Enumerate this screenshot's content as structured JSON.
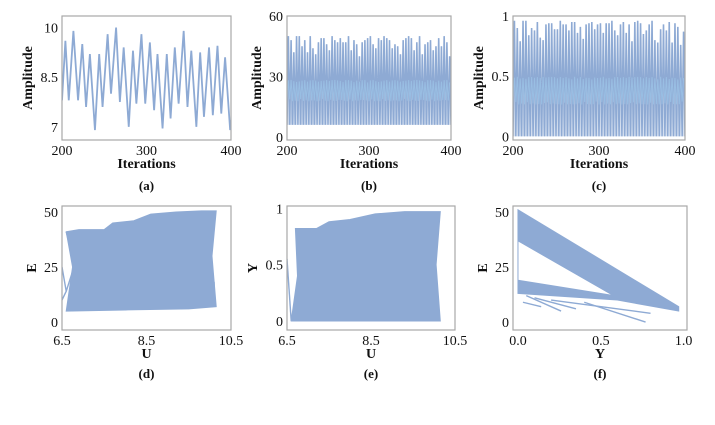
{
  "line_color": "#8eaad4",
  "line_color_inner": "#9cc3e6",
  "frame_color": "#a8a8a8",
  "chart_data": [
    {
      "id": "a",
      "type": "line",
      "caption": "(a)",
      "xlabel": "Iterations",
      "ylabel": "Amplitude",
      "xlim": [
        200,
        400
      ],
      "ylim": [
        6.6,
        10.35
      ],
      "xticks": [
        "200",
        "300",
        "400"
      ],
      "yticks": [
        "7",
        "8.5",
        "10"
      ],
      "x": [
        200,
        204,
        208,
        213.5,
        219,
        224,
        228.5,
        233,
        239,
        244,
        248,
        254,
        258,
        264,
        268.5,
        273,
        279,
        284,
        288,
        294,
        298.5,
        304,
        309,
        313,
        319,
        324,
        328.5,
        333.5,
        338,
        344,
        348.5,
        353,
        359,
        363.5,
        368,
        374,
        378.5,
        384,
        388.5,
        393,
        399,
        400
      ],
      "y": [
        7.8,
        9.6,
        7.8,
        9.9,
        7.8,
        9.5,
        7.6,
        9.2,
        6.9,
        9.2,
        7.6,
        9.8,
        8.0,
        10.0,
        7.75,
        9.4,
        7.0,
        9.3,
        7.7,
        9.8,
        7.7,
        9.55,
        7.5,
        9.2,
        6.95,
        9.2,
        7.25,
        9.4,
        7.7,
        9.9,
        7.6,
        9.3,
        7.0,
        9.25,
        7.3,
        9.4,
        7.35,
        9.45,
        7.4,
        9.1,
        6.9,
        7.2
      ]
    },
    {
      "id": "b",
      "type": "line",
      "caption": "(b)",
      "xlabel": "Iterations",
      "ylabel": "Amplitude",
      "xlim": [
        200,
        400
      ],
      "ylim": [
        -1.5,
        60
      ],
      "xticks": [
        "200",
        "300",
        "400"
      ],
      "yticks": [
        "0",
        "30",
        "60"
      ],
      "trough": 6,
      "peaks": [
        50,
        48,
        42,
        50,
        50,
        45,
        48,
        42,
        50,
        44,
        41,
        47,
        49,
        49,
        46,
        43,
        50,
        48,
        47,
        49,
        47,
        47,
        50,
        43,
        48,
        46,
        40,
        47,
        48,
        49,
        50,
        46,
        44,
        49,
        48,
        50,
        49,
        48,
        44,
        46,
        45,
        41,
        48,
        49,
        50,
        49,
        43,
        47,
        50,
        41,
        46,
        47,
        48,
        43,
        45,
        49,
        45,
        50,
        47,
        40
      ]
    },
    {
      "id": "c",
      "type": "line",
      "caption": "(c)",
      "xlabel": "Iterations",
      "ylabel": "Amplitude",
      "xlim": [
        200,
        400
      ],
      "ylim": [
        -0.03,
        1
      ],
      "xticks": [
        "200",
        "300",
        "400"
      ],
      "yticks": [
        "0",
        "0.5",
        "1"
      ],
      "trough": 0,
      "peaks": [
        0.96,
        0.9,
        0.79,
        0.96,
        0.96,
        0.84,
        0.9,
        0.88,
        0.95,
        0.82,
        0.8,
        0.93,
        0.94,
        0.94,
        0.89,
        0.89,
        0.96,
        0.93,
        0.93,
        0.88,
        0.95,
        0.95,
        0.86,
        0.91,
        0.81,
        0.93,
        0.94,
        0.95,
        0.89,
        0.93,
        0.94,
        0.86,
        0.94,
        0.94,
        0.96,
        0.88,
        0.84,
        0.93,
        0.95,
        0.86,
        0.93,
        0.79,
        0.95,
        0.96,
        0.94,
        0.85,
        0.88,
        0.93,
        0.96,
        0.8,
        0.78,
        0.89,
        0.93,
        0.88,
        0.95,
        0.78,
        0.94,
        0.91,
        0.76,
        0.87
      ]
    },
    {
      "id": "d",
      "type": "line",
      "caption": "(d)",
      "xlabel": "U",
      "ylabel": "E",
      "xlim": [
        6.5,
        10.5
      ],
      "ylim": [
        -3.6,
        52.7
      ],
      "xticks": [
        "6.5",
        "8.5",
        "10.5"
      ],
      "yticks": [
        "0",
        "25",
        "50"
      ],
      "region": [
        [
          6.6,
          41
        ],
        [
          6.9,
          42
        ],
        [
          7.5,
          42
        ],
        [
          7.7,
          45
        ],
        [
          8.2,
          46
        ],
        [
          8.6,
          49
        ],
        [
          9.2,
          50
        ],
        [
          9.8,
          50.5
        ],
        [
          10.15,
          50.5
        ],
        [
          10.05,
          30
        ],
        [
          10.15,
          7
        ],
        [
          9.5,
          6
        ],
        [
          8,
          5.5
        ],
        [
          6.6,
          5
        ],
        [
          6.75,
          25
        ]
      ],
      "strays": [
        [
          [
            6.5,
            10
          ],
          [
            6.6,
            14
          ],
          [
            6.5,
            25
          ]
        ],
        [
          [
            6.6,
            41
          ],
          [
            6.8,
            26
          ],
          [
            6.6,
            14
          ]
        ],
        [
          [
            10.1,
            50
          ],
          [
            9.9,
            30
          ],
          [
            10.1,
            18
          ],
          [
            10.1,
            7
          ]
        ]
      ]
    },
    {
      "id": "e",
      "type": "line",
      "caption": "(e)",
      "xlabel": "U",
      "ylabel": "Y",
      "xlim": [
        6.5,
        10.5
      ],
      "ylim": [
        -0.08,
        1.02
      ],
      "xticks": [
        "6.5",
        "8.5",
        "10.5"
      ],
      "yticks": [
        "0",
        "0.5",
        "1"
      ],
      "region": [
        [
          6.7,
          0.82
        ],
        [
          7.2,
          0.82
        ],
        [
          7.5,
          0.88
        ],
        [
          8,
          0.9
        ],
        [
          8.6,
          0.95
        ],
        [
          9.3,
          0.97
        ],
        [
          10.15,
          0.97
        ],
        [
          10.05,
          0.5
        ],
        [
          10.15,
          0
        ],
        [
          6.6,
          0
        ],
        [
          6.75,
          0.4
        ]
      ],
      "strays": [
        [
          [
            6.5,
            0.55
          ],
          [
            6.6,
            0
          ]
        ],
        [
          [
            10.1,
            0.97
          ],
          [
            9.95,
            0.5
          ],
          [
            10.1,
            0
          ]
        ]
      ]
    },
    {
      "id": "f",
      "type": "line",
      "caption": "(f)",
      "xlabel": "Y",
      "ylabel": "E",
      "xlim": [
        -0.03,
        1.02
      ],
      "ylim": [
        -3.6,
        52.7
      ],
      "xticks": [
        "0.0",
        "0.5",
        "1.0"
      ],
      "yticks": [
        "0",
        "25",
        "50"
      ],
      "region": [
        [
          0,
          51
        ],
        [
          0.97,
          7
        ],
        [
          0.97,
          5
        ],
        [
          0.6,
          10
        ],
        [
          0,
          13
        ]
      ],
      "hole": [
        [
          0,
          37
        ],
        [
          0.58,
          12
        ],
        [
          0,
          19
        ]
      ],
      "strays": [
        [
          [
            0,
            37
          ],
          [
            0.58,
            12
          ]
        ],
        [
          [
            0.03,
            9
          ],
          [
            0.14,
            7
          ]
        ],
        [
          [
            0.05,
            12
          ],
          [
            0.26,
            5
          ]
        ],
        [
          [
            0.1,
            11
          ],
          [
            0.35,
            6
          ]
        ],
        [
          [
            0.4,
            9
          ],
          [
            0.77,
            0
          ]
        ],
        [
          [
            0.2,
            10
          ],
          [
            0.8,
            4
          ]
        ]
      ]
    }
  ]
}
